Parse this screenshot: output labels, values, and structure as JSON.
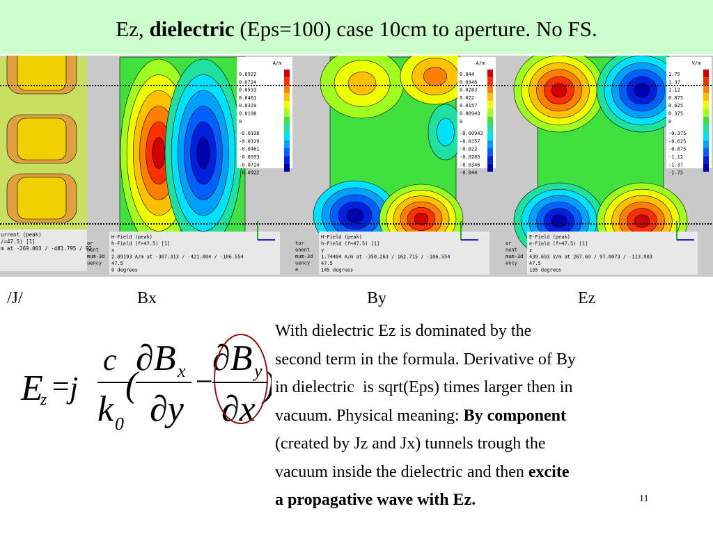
{
  "header": {
    "title": [
      {
        "text": "Ez, ",
        "bold": false
      },
      {
        "text": "dielectric",
        "bold": true
      },
      {
        "text": " (Eps=100) case 10cm to aperture. No FS.",
        "bold": false
      }
    ]
  },
  "panel_labels": [
    "/J/",
    "Bx",
    "By",
    "Ez"
  ],
  "panels": [
    {
      "info": [
        "urrent (peak)",
        "/=47.5) [1]",
        "m at -269.003 / -481.795 / 92"
      ]
    },
    {
      "unit": "A/m",
      "legend": [
        "0.0922",
        "0.0724",
        "0.0593",
        "0.0461",
        "0.0329",
        "0.0198",
        "0",
        "-0.0198",
        "-0.0329",
        "-0.0461",
        "-0.0593",
        "-0.0724",
        "-0.0922"
      ],
      "side": [
        "or",
        "nent",
        "mum-3d",
        "uency"
      ],
      "info": [
        "H-Field (peak)",
        "h-Field (f=47.5) [1]",
        "x",
        "2.09193 A/m at -307.313 / -421.004 / -106.554",
        "47.5",
        "0 degrees"
      ]
    },
    {
      "unit": "A/m",
      "legend": [
        "0.044",
        "0.0346",
        "0.0283",
        "0.022",
        "0.0157",
        "0.00943",
        "0",
        "-0.00943",
        "-0.0157",
        "-0.022",
        "-0.0283",
        "-0.0346",
        "-0.044"
      ],
      "side": [
        "tor",
        "onent",
        "mum-3d",
        "uency",
        "e"
      ],
      "info": [
        "H-Field (peak)",
        "h-Field (f=47.5) [1]",
        "y",
        "1.74404 A/m at -350.263 / 162.715 / -106.554",
        "47.5",
        "145 degrees"
      ]
    },
    {
      "unit": "V/m",
      "legend": [
        "1.75",
        "1.37",
        "1.12",
        "0.875",
        "0.625",
        "0.375",
        "0",
        "-0.375",
        "-0.625",
        "-0.875",
        "-1.12",
        "-1.37",
        "-1.75"
      ],
      "side": [
        "or",
        "nent",
        "mum-3d",
        "ency"
      ],
      "info": [
        "E-Field (peak)",
        "e-Field (f=47.5) [1]",
        "z",
        "439.693 V/m at 267.69 / 97.0073 / -113.903",
        "47.5",
        "135 degrees"
      ]
    }
  ],
  "formula": {
    "lhs": "E",
    "lhs_sub": "z",
    "eq": "=",
    "j": "j",
    "num": "c",
    "den": "k",
    "den_sub": "0",
    "open": "(",
    "d1": "∂B",
    "d1_sub": "x",
    "d1_den": "∂y",
    "minus": "−",
    "d2": "∂B",
    "d2_sub": "y",
    "d2_den": "∂x",
    "close": ")"
  },
  "body": {
    "lines": [
      [
        {
          "text": "With dielectric Ez is dominated by the",
          "bold": false
        }
      ],
      [
        {
          "text": "second term in the formula. Derivative of By",
          "bold": false
        }
      ],
      [
        {
          "text": "in dielectric  is sqrt(Eps) times larger then in",
          "bold": false
        }
      ],
      [
        {
          "text": "vacuum. Physical meaning: ",
          "bold": false
        },
        {
          "text": "By component",
          "bold": true
        }
      ],
      [
        {
          "text": "(created by Jz and Jx) tunnels trough the",
          "bold": false
        }
      ],
      [
        {
          "text": "vacuum inside the dielectric and then ",
          "bold": false
        },
        {
          "text": "excite",
          "bold": true
        }
      ],
      [
        {
          "text": "a propagative wave with Ez.",
          "bold": true
        }
      ]
    ]
  },
  "page_number": "11"
}
